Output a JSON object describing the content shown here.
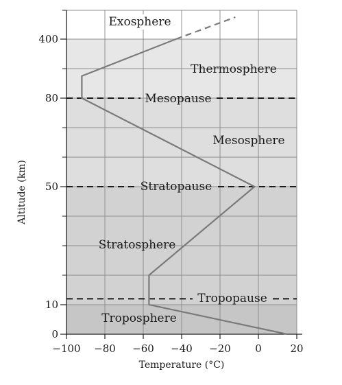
{
  "chart_data": {
    "type": "line",
    "title": "",
    "xlabel": "Temperature (°C)",
    "ylabel": "Altitude (km)",
    "xlim": [
      -100,
      20
    ],
    "x_ticks": [
      -100,
      -80,
      -60,
      -40,
      -20,
      0,
      20
    ],
    "x_tick_labels": [
      "−100",
      "−80",
      "−60",
      "−40",
      "−20",
      "0",
      "20"
    ],
    "y_ticks": [
      0,
      10,
      50,
      80,
      400
    ],
    "y_tick_labels": [
      "0",
      "10",
      "50",
      "80",
      "400"
    ],
    "grid": true,
    "series": [
      {
        "solid": [
          {
            "x": 15,
            "y": 0
          },
          {
            "x": -57,
            "y": 10
          },
          {
            "x": -57,
            "y": 20
          },
          {
            "x": -2,
            "y": 50
          },
          {
            "x": -92,
            "y": 80
          },
          {
            "x": -92,
            "y": 200
          },
          {
            "x": -43,
            "y": 400
          }
        ],
        "dashed": [
          {
            "x": -43,
            "y": 400
          },
          {
            "x": -12,
            "y": 600
          }
        ]
      }
    ],
    "boundaries": [
      {
        "name": "Tropopause",
        "altitude": 12
      },
      {
        "name": "Stratopause",
        "altitude": 50
      },
      {
        "name": "Mesopause",
        "altitude": 80
      }
    ],
    "layers": [
      {
        "name": "Troposphere"
      },
      {
        "name": "Stratosphere"
      },
      {
        "name": "Mesosphere"
      },
      {
        "name": "Thermosphere"
      },
      {
        "name": "Exosphere"
      }
    ],
    "colors": {
      "troposphere": "#c6c6c6",
      "lower_middle": "#d2d2d2",
      "upper_middle": "#dedede",
      "thermosphere": "#e7e7e7",
      "grid": "#8f8f8f",
      "profile": "#7a7a7a",
      "boundary": "#1a1a1a"
    }
  }
}
